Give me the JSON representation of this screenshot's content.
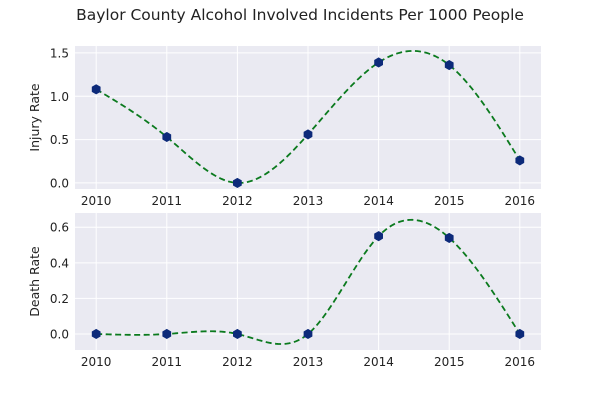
{
  "title": "Baylor County Alcohol Involved Incidents Per 1000 People",
  "colors": {
    "background": "#eaeaf2",
    "grid": "#ffffff",
    "marker": "#0d2a7a",
    "curve": "#0b7a1e"
  },
  "chart_data": [
    {
      "type": "line",
      "title": "",
      "xlabel": "",
      "ylabel": "Injury Rate",
      "x": [
        2010,
        2011,
        2012,
        2013,
        2014,
        2015,
        2016
      ],
      "series": [
        {
          "values": [
            1.08,
            0.53,
            0.0,
            0.56,
            1.39,
            1.36,
            0.26
          ],
          "marker": "hexagon",
          "fit_line": "dashed smooth spline"
        }
      ],
      "xlim": [
        2009.7,
        2016.3
      ],
      "ylim": [
        -0.07,
        1.58
      ],
      "yticks": [
        0.0,
        0.5,
        1.0,
        1.5
      ],
      "ytick_labels": [
        "0.0",
        "0.5",
        "1.0",
        "1.5"
      ],
      "xtick_labels": [
        "2010",
        "2011",
        "2012",
        "2013",
        "2014",
        "2015",
        "2016"
      ],
      "grid": true,
      "legend": "none"
    },
    {
      "type": "line",
      "title": "",
      "xlabel": "",
      "ylabel": "Death Rate",
      "x": [
        2010,
        2011,
        2012,
        2013,
        2014,
        2015,
        2016
      ],
      "series": [
        {
          "values": [
            0.0,
            0.0,
            0.0,
            0.0,
            0.55,
            0.54,
            0.0
          ],
          "marker": "hexagon",
          "fit_line": "dashed smooth spline"
        }
      ],
      "xlim": [
        2009.7,
        2016.3
      ],
      "ylim": [
        -0.09,
        0.68
      ],
      "yticks": [
        0.0,
        0.2,
        0.4,
        0.6
      ],
      "ytick_labels": [
        "0.0",
        "0.2",
        "0.4",
        "0.6"
      ],
      "xtick_labels": [
        "2010",
        "2011",
        "2012",
        "2013",
        "2014",
        "2015",
        "2016"
      ],
      "grid": true,
      "legend": "none"
    }
  ]
}
